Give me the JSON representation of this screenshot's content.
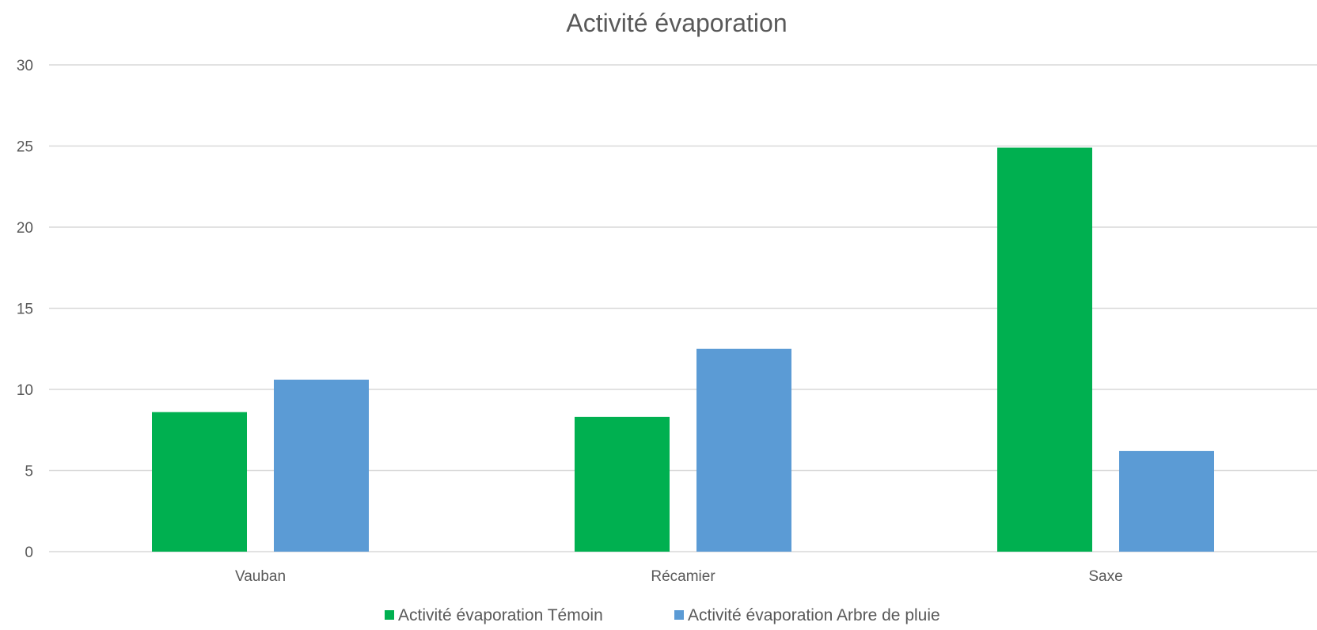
{
  "chart_data": {
    "type": "bar",
    "title": "Activité évaporation",
    "categories": [
      "Vauban",
      "Récamier",
      "Saxe"
    ],
    "series": [
      {
        "name": "Activité évaporation Témoin",
        "values": [
          8.6,
          8.3,
          24.9
        ],
        "color": "#00b050"
      },
      {
        "name": "Activité évaporation Arbre de pluie",
        "values": [
          10.6,
          12.5,
          6.2
        ],
        "color": "#5b9bd5"
      }
    ],
    "xlabel": "",
    "ylabel": "",
    "ylim": [
      0,
      30
    ],
    "yticks": [
      0,
      5,
      10,
      15,
      20,
      25,
      30
    ],
    "grid": true,
    "legend_position": "bottom"
  }
}
